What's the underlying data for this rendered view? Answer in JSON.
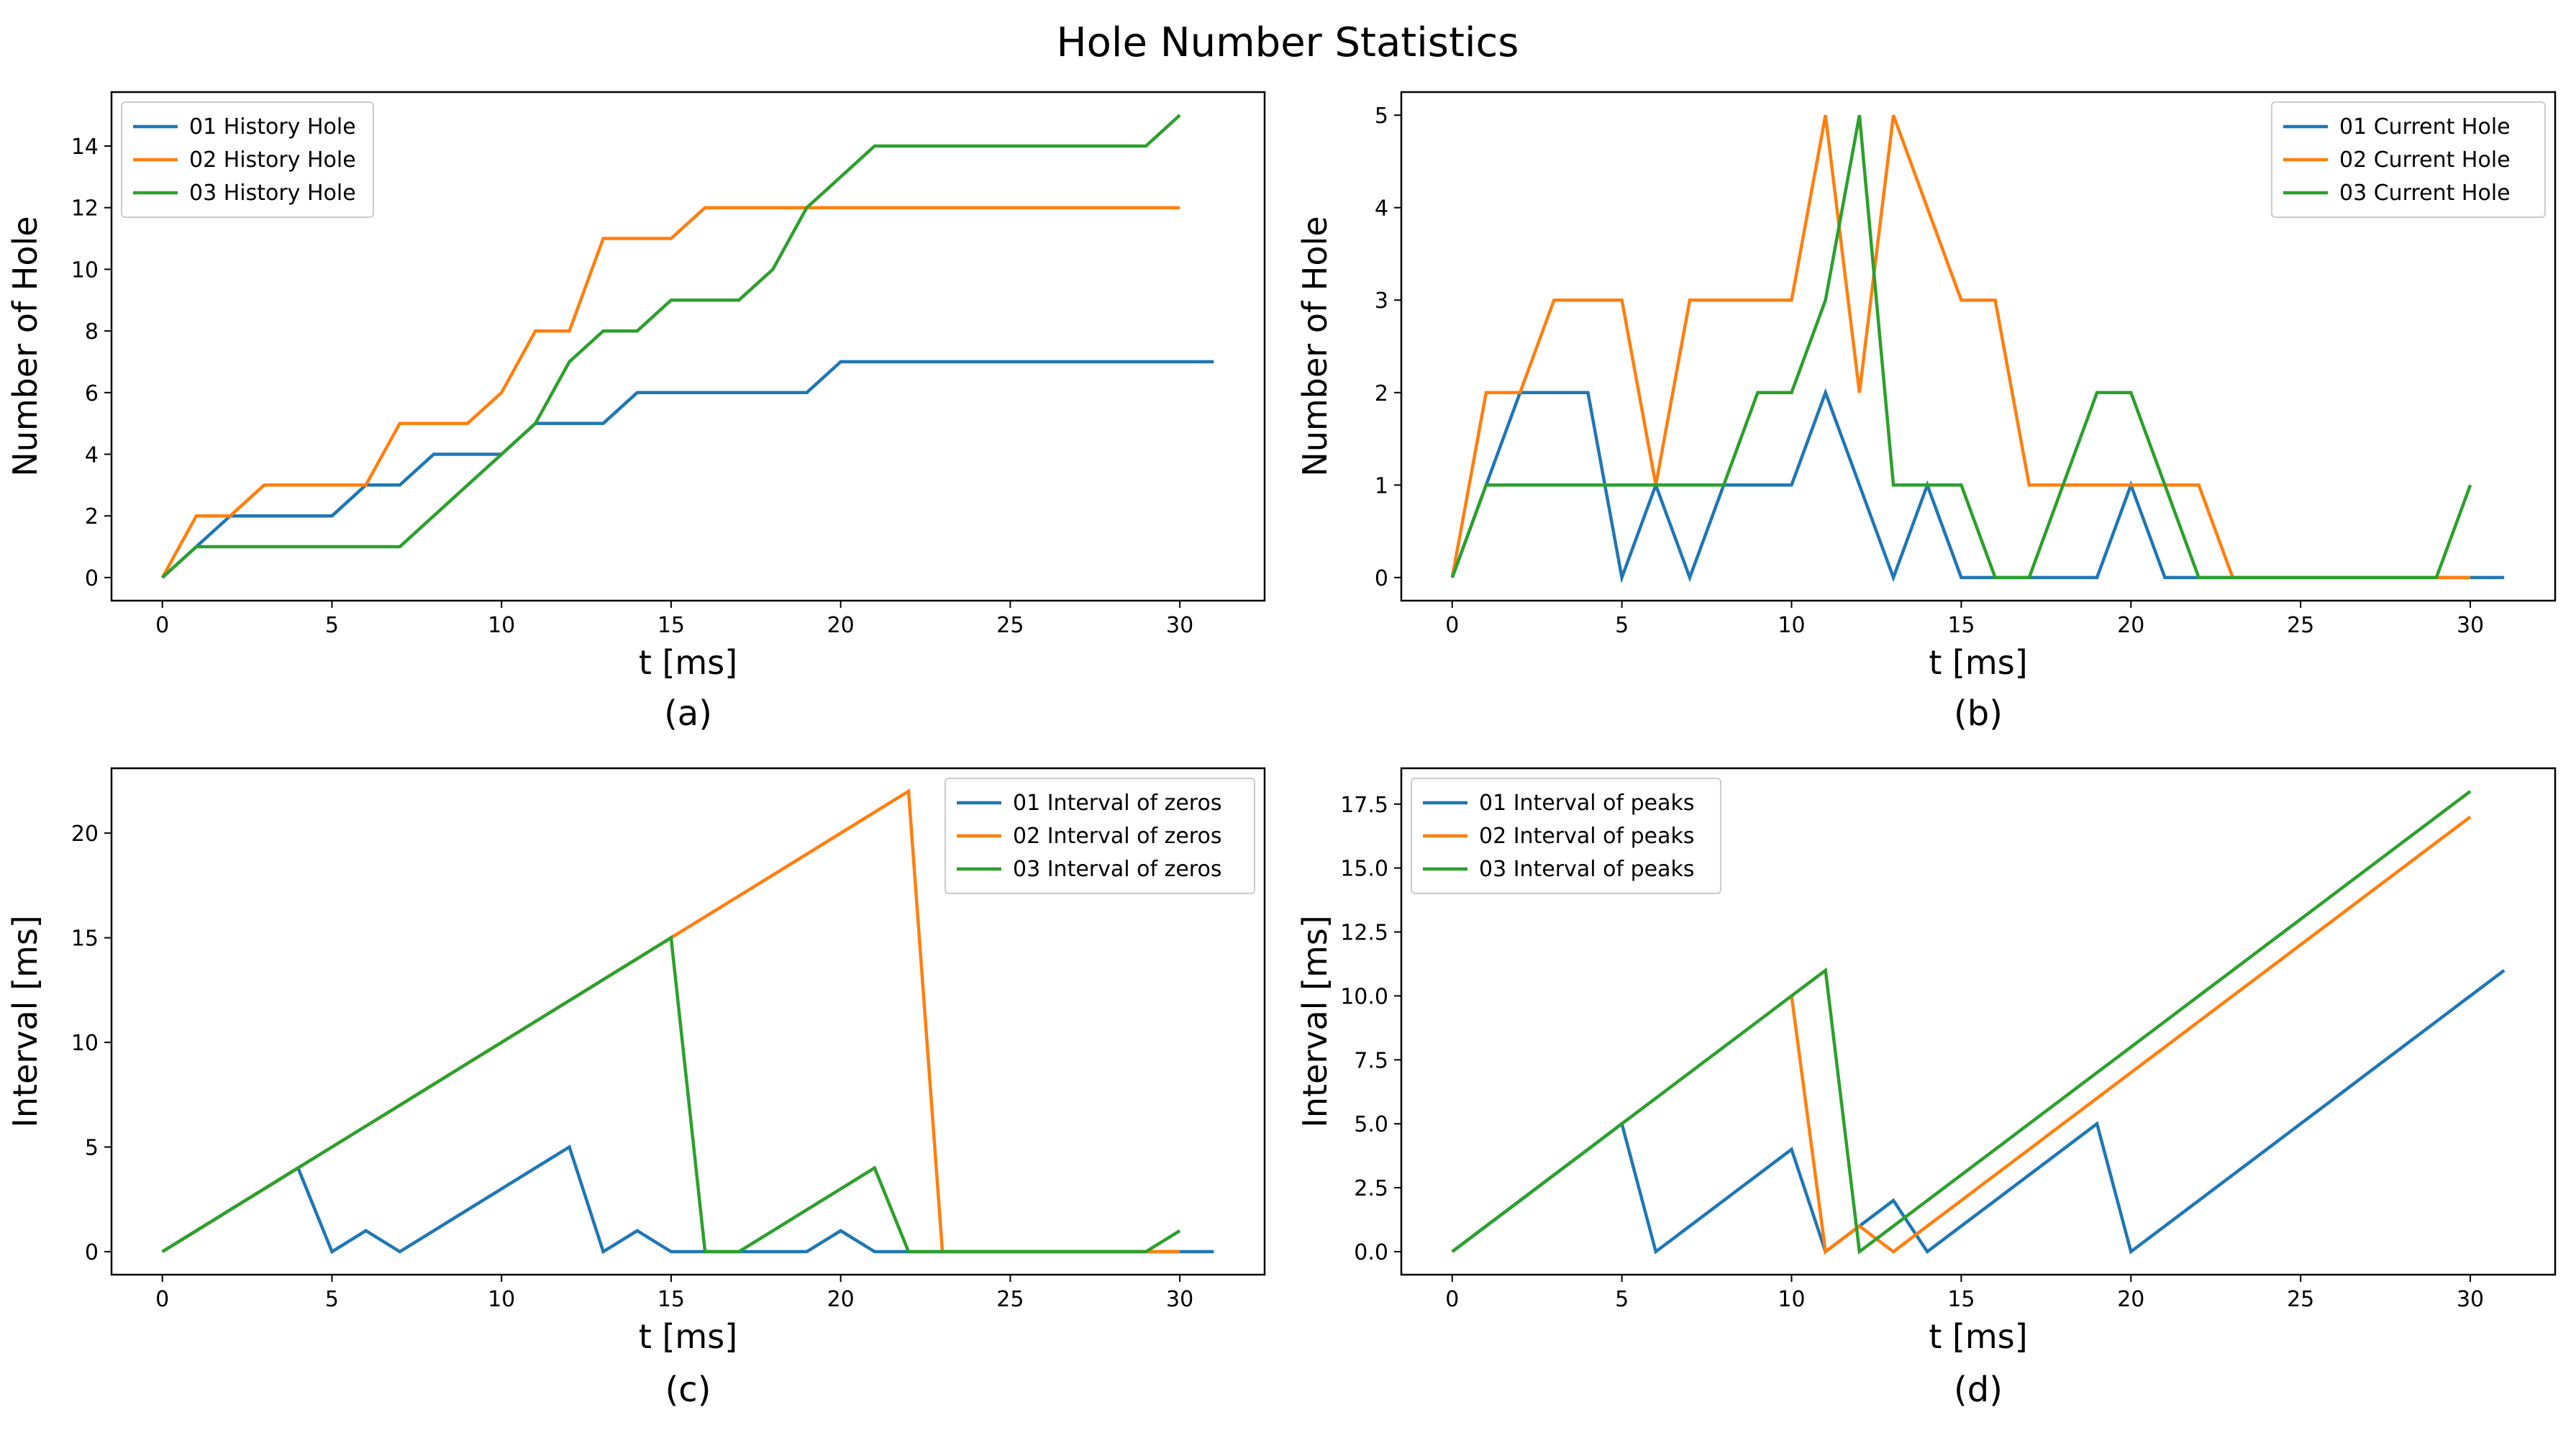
{
  "figure": {
    "title": "Hole Number Statistics",
    "colors": [
      "#1f77b4",
      "#ff7f0e",
      "#2ca02c"
    ]
  },
  "chart_data": [
    {
      "type": "line",
      "caption": "(a)",
      "xlabel": "t [ms]",
      "ylabel": "Number of Hole",
      "xlim": [
        -1.5,
        32.5
      ],
      "ylim": [
        -0.75,
        15.75
      ],
      "xticks": [
        0,
        5,
        10,
        15,
        20,
        25,
        30
      ],
      "yticks": [
        0,
        2,
        4,
        6,
        8,
        10,
        12,
        14
      ],
      "tick_labels_x": [
        "0",
        "5",
        "10",
        "15",
        "20",
        "25",
        "30"
      ],
      "tick_labels_y": [
        "0",
        "2",
        "4",
        "6",
        "8",
        "10",
        "12",
        "14"
      ],
      "legend_position": "upper-left",
      "series": [
        {
          "name": "01 History Hole",
          "x": [
            0,
            1,
            2,
            3,
            4,
            5,
            6,
            7,
            8,
            9,
            10,
            11,
            12,
            13,
            14,
            15,
            16,
            17,
            18,
            19,
            20,
            21,
            22,
            23,
            24,
            25,
            26,
            27,
            28,
            29,
            30,
            31
          ],
          "values": [
            0,
            1,
            2,
            2,
            2,
            2,
            3,
            3,
            4,
            4,
            4,
            5,
            5,
            5,
            6,
            6,
            6,
            6,
            6,
            6,
            7,
            7,
            7,
            7,
            7,
            7,
            7,
            7,
            7,
            7,
            7,
            7
          ]
        },
        {
          "name": "02 History Hole",
          "x": [
            0,
            1,
            2,
            3,
            4,
            5,
            6,
            7,
            8,
            9,
            10,
            11,
            12,
            13,
            14,
            15,
            16,
            17,
            18,
            19,
            20,
            21,
            22,
            23,
            24,
            25,
            26,
            27,
            28,
            29,
            30
          ],
          "values": [
            0,
            2,
            2,
            3,
            3,
            3,
            3,
            5,
            5,
            5,
            6,
            8,
            8,
            11,
            11,
            11,
            12,
            12,
            12,
            12,
            12,
            12,
            12,
            12,
            12,
            12,
            12,
            12,
            12,
            12,
            12
          ]
        },
        {
          "name": "03 History Hole",
          "x": [
            0,
            1,
            2,
            3,
            4,
            5,
            6,
            7,
            8,
            9,
            10,
            11,
            12,
            13,
            14,
            15,
            16,
            17,
            18,
            19,
            20,
            21,
            22,
            23,
            24,
            25,
            26,
            27,
            28,
            29,
            30
          ],
          "values": [
            0,
            1,
            1,
            1,
            1,
            1,
            1,
            1,
            2,
            3,
            4,
            5,
            7,
            8,
            8,
            9,
            9,
            9,
            10,
            12,
            13,
            14,
            14,
            14,
            14,
            14,
            14,
            14,
            14,
            14,
            15
          ]
        }
      ]
    },
    {
      "type": "line",
      "caption": "(b)",
      "xlabel": "t [ms]",
      "ylabel": "Number of Hole",
      "xlim": [
        -1.5,
        32.5
      ],
      "ylim": [
        -0.25,
        5.25
      ],
      "xticks": [
        0,
        5,
        10,
        15,
        20,
        25,
        30
      ],
      "yticks": [
        0,
        1,
        2,
        3,
        4,
        5
      ],
      "tick_labels_x": [
        "0",
        "5",
        "10",
        "15",
        "20",
        "25",
        "30"
      ],
      "tick_labels_y": [
        "0",
        "1",
        "2",
        "3",
        "4",
        "5"
      ],
      "legend_position": "upper-right",
      "series": [
        {
          "name": "01 Current Hole",
          "x": [
            0,
            1,
            2,
            3,
            4,
            5,
            6,
            7,
            8,
            9,
            10,
            11,
            12,
            13,
            14,
            15,
            16,
            17,
            18,
            19,
            20,
            21,
            22,
            23,
            24,
            25,
            26,
            27,
            28,
            29,
            30,
            31
          ],
          "values": [
            0,
            1,
            2,
            2,
            2,
            0,
            1,
            0,
            1,
            1,
            1,
            2,
            1,
            0,
            1,
            0,
            0,
            0,
            0,
            0,
            1,
            0,
            0,
            0,
            0,
            0,
            0,
            0,
            0,
            0,
            0,
            0
          ]
        },
        {
          "name": "02 Current Hole",
          "x": [
            0,
            1,
            2,
            3,
            4,
            5,
            6,
            7,
            8,
            9,
            10,
            11,
            12,
            13,
            14,
            15,
            16,
            17,
            18,
            19,
            20,
            21,
            22,
            23,
            24,
            25,
            26,
            27,
            28,
            29,
            30
          ],
          "values": [
            0,
            2,
            2,
            3,
            3,
            3,
            1,
            3,
            3,
            3,
            3,
            5,
            2,
            5,
            4,
            3,
            3,
            1,
            1,
            1,
            1,
            1,
            1,
            0,
            0,
            0,
            0,
            0,
            0,
            0,
            0
          ]
        },
        {
          "name": "03 Current Hole",
          "x": [
            0,
            1,
            2,
            3,
            4,
            5,
            6,
            7,
            8,
            9,
            10,
            11,
            12,
            13,
            14,
            15,
            16,
            17,
            18,
            19,
            20,
            21,
            22,
            23,
            24,
            25,
            26,
            27,
            28,
            29,
            30
          ],
          "values": [
            0,
            1,
            1,
            1,
            1,
            1,
            1,
            1,
            1,
            2,
            2,
            3,
            5,
            1,
            1,
            1,
            0,
            0,
            1,
            2,
            2,
            1,
            0,
            0,
            0,
            0,
            0,
            0,
            0,
            0,
            1
          ]
        }
      ]
    },
    {
      "type": "line",
      "caption": "(c)",
      "xlabel": "t [ms]",
      "ylabel": "Interval [ms]",
      "xlim": [
        -1.5,
        32.5
      ],
      "ylim": [
        -1.1,
        23.1
      ],
      "xticks": [
        0,
        5,
        10,
        15,
        20,
        25,
        30
      ],
      "yticks": [
        0,
        5,
        10,
        15,
        20
      ],
      "tick_labels_x": [
        "0",
        "5",
        "10",
        "15",
        "20",
        "25",
        "30"
      ],
      "tick_labels_y": [
        "0",
        "5",
        "10",
        "15",
        "20"
      ],
      "legend_position": "upper-right",
      "series": [
        {
          "name": "01 Interval of zeros",
          "x": [
            0,
            1,
            2,
            3,
            4,
            5,
            6,
            7,
            8,
            9,
            10,
            11,
            12,
            13,
            14,
            15,
            16,
            17,
            18,
            19,
            20,
            21,
            22,
            23,
            24,
            25,
            26,
            27,
            28,
            29,
            30,
            31
          ],
          "values": [
            0,
            1,
            2,
            3,
            4,
            0,
            1,
            0,
            1,
            2,
            3,
            4,
            5,
            0,
            1,
            0,
            0,
            0,
            0,
            0,
            1,
            0,
            0,
            0,
            0,
            0,
            0,
            0,
            0,
            0,
            0,
            0
          ]
        },
        {
          "name": "02 Interval of zeros",
          "x": [
            0,
            1,
            2,
            3,
            4,
            5,
            6,
            7,
            8,
            9,
            10,
            11,
            12,
            13,
            14,
            15,
            16,
            17,
            18,
            19,
            20,
            21,
            22,
            23,
            24,
            25,
            26,
            27,
            28,
            29,
            30
          ],
          "values": [
            0,
            1,
            2,
            3,
            4,
            5,
            6,
            7,
            8,
            9,
            10,
            11,
            12,
            13,
            14,
            15,
            16,
            17,
            18,
            19,
            20,
            21,
            22,
            0,
            0,
            0,
            0,
            0,
            0,
            0,
            0
          ]
        },
        {
          "name": "03 Interval of zeros",
          "x": [
            0,
            1,
            2,
            3,
            4,
            5,
            6,
            7,
            8,
            9,
            10,
            11,
            12,
            13,
            14,
            15,
            16,
            17,
            18,
            19,
            20,
            21,
            22,
            23,
            24,
            25,
            26,
            27,
            28,
            29,
            30
          ],
          "values": [
            0,
            1,
            2,
            3,
            4,
            5,
            6,
            7,
            8,
            9,
            10,
            11,
            12,
            13,
            14,
            15,
            0,
            0,
            1,
            2,
            3,
            4,
            0,
            0,
            0,
            0,
            0,
            0,
            0,
            0,
            1
          ]
        }
      ]
    },
    {
      "type": "line",
      "caption": "(d)",
      "xlabel": "t [ms]",
      "ylabel": "Interval [ms]",
      "xlim": [
        -1.5,
        32.5
      ],
      "ylim": [
        -0.9,
        18.9
      ],
      "xticks": [
        0,
        5,
        10,
        15,
        20,
        25,
        30
      ],
      "yticks": [
        0,
        2.5,
        5,
        7.5,
        10,
        12.5,
        15,
        17.5
      ],
      "tick_labels_x": [
        "0",
        "5",
        "10",
        "15",
        "20",
        "25",
        "30"
      ],
      "tick_labels_y": [
        "0.0",
        "2.5",
        "5.0",
        "7.5",
        "10.0",
        "12.5",
        "15.0",
        "17.5"
      ],
      "legend_position": "upper-left",
      "series": [
        {
          "name": "01 Interval of peaks",
          "x": [
            0,
            1,
            2,
            3,
            4,
            5,
            6,
            7,
            8,
            9,
            10,
            11,
            12,
            13,
            14,
            15,
            16,
            17,
            18,
            19,
            20,
            21,
            22,
            23,
            24,
            25,
            26,
            27,
            28,
            29,
            30,
            31
          ],
          "values": [
            0,
            1,
            2,
            3,
            4,
            5,
            0,
            1,
            2,
            3,
            4,
            0,
            1,
            2,
            0,
            1,
            2,
            3,
            4,
            5,
            0,
            1,
            2,
            3,
            4,
            5,
            6,
            7,
            8,
            9,
            10,
            11
          ]
        },
        {
          "name": "02 Interval of peaks",
          "x": [
            10,
            11,
            12,
            13,
            14,
            15,
            16,
            17,
            18,
            19,
            20,
            21,
            22,
            23,
            24,
            25,
            26,
            27,
            28,
            29,
            30
          ],
          "values": [
            10,
            0,
            1,
            0,
            1,
            2,
            3,
            4,
            5,
            6,
            7,
            8,
            9,
            10,
            11,
            12,
            13,
            14,
            15,
            16,
            17
          ]
        },
        {
          "name": "03 Interval of peaks",
          "x": [
            0,
            1,
            2,
            3,
            4,
            5,
            6,
            7,
            8,
            9,
            10,
            11,
            12,
            13,
            14,
            15,
            16,
            17,
            18,
            19,
            20,
            21,
            22,
            23,
            24,
            25,
            26,
            27,
            28,
            29,
            30
          ],
          "values": [
            0,
            1,
            2,
            3,
            4,
            5,
            6,
            7,
            8,
            9,
            10,
            11,
            0,
            1,
            2,
            3,
            4,
            5,
            6,
            7,
            8,
            9,
            10,
            11,
            12,
            13,
            14,
            15,
            16,
            17,
            18
          ]
        }
      ]
    }
  ]
}
